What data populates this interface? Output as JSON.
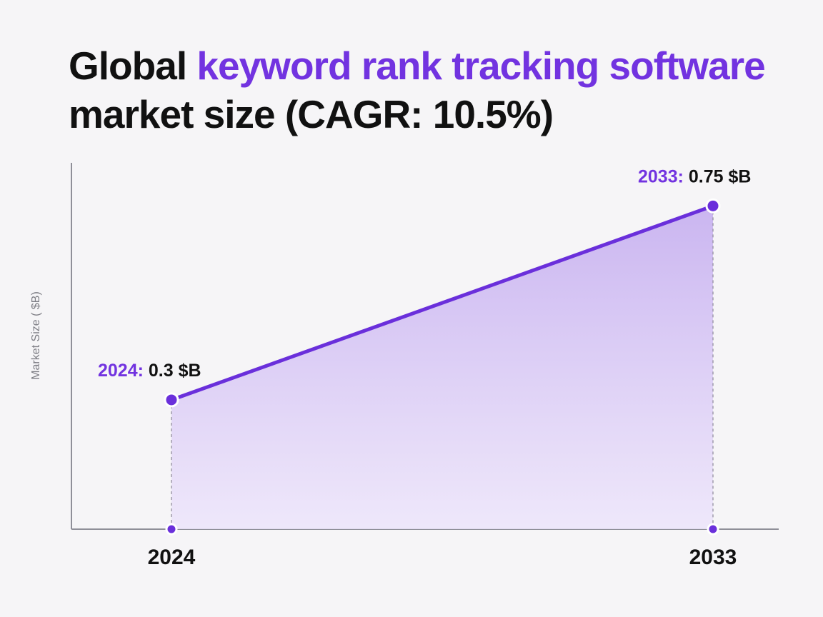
{
  "title": {
    "part1": "Global ",
    "accent": "keyword rank tracking software",
    "part2": " market size (CAGR: 10.5%)"
  },
  "colors": {
    "accent": "#7233e0",
    "line": "#6a2fdb",
    "background": "#f6f5f7",
    "text": "#111111"
  },
  "chart_data": {
    "type": "area",
    "title": "Global keyword rank tracking software market size (CAGR: 10.5%)",
    "ylabel": "Market Size ( $B)",
    "xlabel": "",
    "categories": [
      "2024",
      "2033"
    ],
    "series": [
      {
        "values": [
          0.3,
          0.75
        ]
      }
    ],
    "data_labels": [
      {
        "year": "2024:",
        "value": "0.3 $B"
      },
      {
        "year": "2033:",
        "value": "0.75 $B"
      }
    ],
    "ylim": [
      0,
      0.85
    ],
    "grid": false,
    "legend": "none"
  }
}
